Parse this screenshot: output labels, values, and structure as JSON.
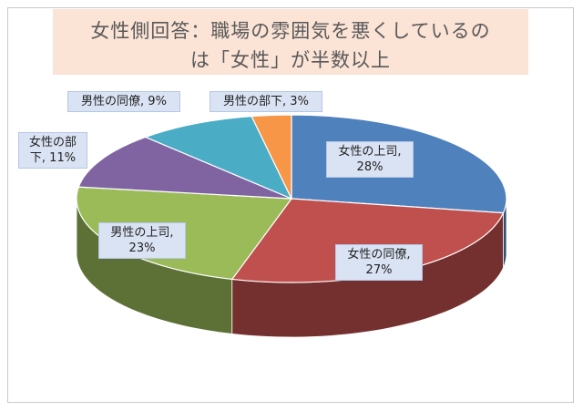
{
  "chart_data": {
    "type": "pie",
    "title": "女性側回答：職場の雰囲気を悪くしているのは「女性」が半数以上",
    "title_lines": [
      "女性側回答：職場の雰囲気を悪くしているの",
      "は「女性」が半数以上"
    ],
    "style": "3d",
    "slices": [
      {
        "name": "女性の上司",
        "value": 28,
        "label_lines": [
          "女性の上司,",
          "28%"
        ],
        "color": "#4f81bd"
      },
      {
        "name": "女性の同僚",
        "value": 27,
        "label_lines": [
          "女性の同僚,",
          "27%"
        ],
        "color": "#c0504d"
      },
      {
        "name": "男性の上司",
        "value": 23,
        "label_lines": [
          "男性の上司,",
          "23%"
        ],
        "color": "#9bbb59"
      },
      {
        "name": "女性の部下",
        "value": 11,
        "label_lines": [
          "女性の部",
          "下, 11%"
        ],
        "color": "#8064a2"
      },
      {
        "name": "男性の同僚",
        "value": 9,
        "label_lines": [
          "男性の同僚, 9%"
        ],
        "color": "#4bacc6"
      },
      {
        "name": "男性の部下",
        "value": 3,
        "label_lines": [
          "男性の部下, 3%"
        ],
        "color": "#f79646"
      }
    ],
    "legend": "none",
    "title_background": "#fbe3d6"
  }
}
